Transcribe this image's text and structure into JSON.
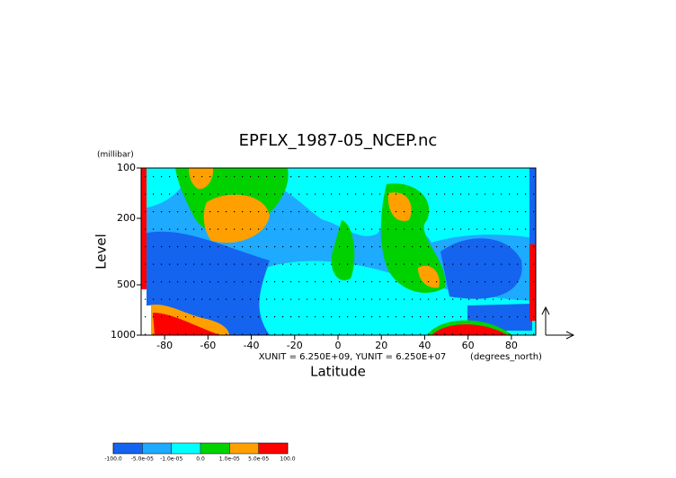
{
  "chart_data": {
    "type": "contour",
    "title": "EPFLX_1987-05_NCEP.nc",
    "x_label": "Latitude",
    "y_label": "Level",
    "y_unit": "(millibar)",
    "x_unit": "(degrees_north)",
    "vector_scale": "XUNIT = 6.250E+09, YUNIT = 6.250E+07",
    "xlim": [
      -90,
      90
    ],
    "xticks": [
      -80,
      -60,
      -40,
      -20,
      0,
      20,
      40,
      60,
      80
    ],
    "ylim": [
      1000,
      100
    ],
    "yticks": [
      100,
      200,
      500,
      1000
    ],
    "log_y": true,
    "colorbar": {
      "levels": [
        {
          "value": -100,
          "label": "-100.0"
        },
        {
          "value": -5e-05,
          "label": "-5.0e-05"
        },
        {
          "value": -1e-05,
          "label": "-1.0e-05"
        },
        {
          "value": 0,
          "label": "0.0"
        },
        {
          "value": 1e-05,
          "label": "1.0e-05"
        },
        {
          "value": 5e-05,
          "label": "5.0e-05"
        },
        {
          "value": 100,
          "label": "100.0"
        }
      ],
      "colors": [
        "#1464f0",
        "#1eaaff",
        "#00ffff",
        "#00d200",
        "#ffa000",
        "#ff0000"
      ]
    }
  }
}
